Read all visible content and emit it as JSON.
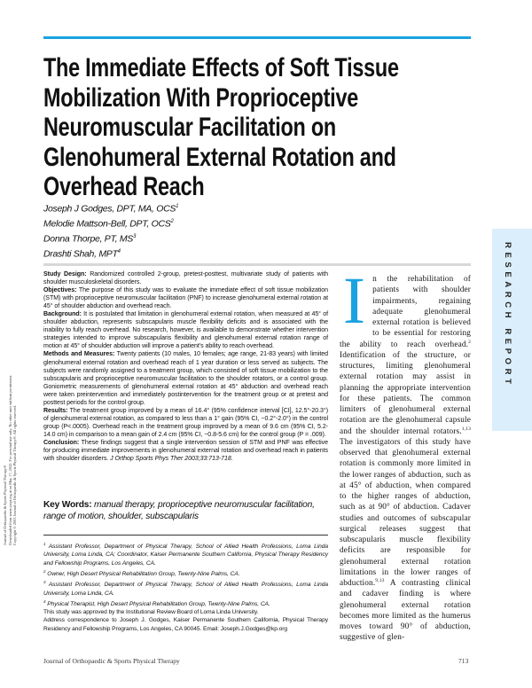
{
  "title_lines": [
    "The Immediate Effects of Soft Tissue",
    "Mobilization With Proprioceptive",
    "Neuromuscular Facilitation on",
    "Glenohumeral External Rotation and",
    "Overhead Reach"
  ],
  "authors": [
    {
      "name": "Joseph J Godges, DPT, MA, OCS",
      "sup": "1"
    },
    {
      "name": "Melodie Mattson-Bell, DPT, OCS",
      "sup": "2"
    },
    {
      "name": "Donna Thorpe, PT, MS",
      "sup": "3"
    },
    {
      "name": "Drashti Shah, MPT",
      "sup": "4"
    }
  ],
  "abstract": {
    "study_design": {
      "label": "Study Design:",
      "text": " Randomized controlled 2-group, pretest-posttest, multivariate study of patients with shoulder musculoskeletal disorders."
    },
    "objectives": {
      "label": "Objectives:",
      "text": " The purpose of this study was to evaluate the immediate effect of soft tissue mobilization (STM) with proprioceptive neuromuscular facilitation (PNF) to increase glenohumeral external rotation at 45° of shoulder abduction and overhead reach."
    },
    "background": {
      "label": "Background:",
      "text": " It is postulated that limitation in glenohumeral external rotation, when measured at 45° of shoulder abduction, represents subscapularis muscle flexibility deficits and is associated with the inability to fully reach overhead. No research, however, is available to demonstrate whether intervention strategies intended to improve subscapularis flexibility and glenohumeral external rotation range of motion at 45° of shoulder abduction will improve a patient's ability to reach overhead."
    },
    "methods": {
      "label": "Methods and Measures:",
      "text": " Twenty patients (10 males, 10 females; age range, 21-83 years) with limited glenohumeral external rotation and overhead reach of 1 year duration or less served as subjects. The subjects were randomly assigned to a treatment group, which consisted of soft tissue mobilization to the subscapularis and proprioceptive neuromuscular facilitation to the shoulder rotators, or a control group. Goniometric measurements of glenohumeral external rotation at 45° abduction and overhead reach were taken preintervention and immediately postintervention for the treatment group or at pretest and posttest periods for the control group."
    },
    "results": {
      "label": "Results:",
      "text": " The treatment group improved by a mean of 16.4° (95% confidence interval [CI], 12.5°-20.3°) of glenohumeral external rotation, as compared to less than a 1° gain (95% CI, −0.2°-2.0°) in the control group (P<.0005). Overhead reach in the treatment group improved by a mean of 9.6 cm (95% CI, 5.2-14.0 cm) in comparison to a mean gain of 2.4 cm (95% CI, −0.8-5.6 cm) for the control group (P = .009)."
    },
    "conclusion": {
      "label": "Conclusion:",
      "text": " These findings suggest that a single intervention session of STM and PNF was effective for producing immediate improvements in glenohumeral external rotation and overhead reach in patients with shoulder disorders. ",
      "citation": "J Orthop Sports Phys Ther 2003;33:713-718."
    }
  },
  "keywords": {
    "label": "Key Words:",
    "text": " manual therapy, proprioceptive neuromuscular facilitation, range of motion, shoulder, subscapularis"
  },
  "footnotes": [
    {
      "sup": "1",
      "text": " Assistant Professor, Department of Physical Therapy, School of Allied Health Professions, Loma Linda University, Loma Linda, CA; Coordinator, Kaiser Permanente Southern California, Physical Therapy Residency and Fellowship Programs, Los Angeles, CA."
    },
    {
      "sup": "2",
      "text": " Owner, High Desert Physical Rehabilitation Group, Twenty-Nine Palms, CA."
    },
    {
      "sup": "3",
      "text": " Assistant Professor, Department of Physical Therapy, School of Allied Health Professions, Loma Linda University, Loma Linda, CA."
    },
    {
      "sup": "4",
      "text": " Physical Therapist, High Desert Physical Rehabilitation Group, Twenty-Nine Palms, CA."
    }
  ],
  "approval_note": "This study was approved by the Institutional Review Board of Loma Linda University.",
  "correspondence": "Address correspondence to Joseph J. Godges, Kaiser Permanente Southern California, Physical Therapy Residency and Fellowship Programs, Los Angeles, CA 90045. Email: Joseph.J.Godges@kp.org",
  "body": {
    "dropcap": "I",
    "p1": "n the rehabilitation of patients with shoulder impairments, regaining adequate glenohumeral external rotation is believed to be essential for restoring the ability to reach overhead.",
    "ref1": "2",
    "p2": " Identification of the structure, or structures, limiting glenohumeral external rotation may assist in planning the appropriate intervention for these patients. The common limiters of glenohumeral external rotation are the glenohumeral capsule and the shoulder internal rotators.",
    "ref2": "1,13",
    "p3": " The investigators of this study have observed that glenohumeral external rotation is commonly more limited in the lower ranges of abduction, such as at 45° of abduction, when compared to the higher ranges of abduction, such as at 90° of abduction. Cadaver studies and outcomes of subscapular surgical releases suggest that subscapularis muscle flexibility deficits are responsible for glenohumeral external rotation limitations in the lower ranges of abduction.",
    "ref3": "9,13",
    "p4": " A contrasting clinical and cadaver finding is where glenohumeral external rotation becomes more limited as the humerus moves toward 90° of abduction, suggestive of glen-"
  },
  "section_label": "RESEARCH REPORT",
  "footer": {
    "journal": "Journal of Orthopaedic & Sports Physical Therapy",
    "page": "713"
  },
  "side_notice": [
    "Journal of Orthopaedic & Sports Physical Therapy®",
    "Downloaded from www.jospt.org at on May 17, 2022. For personal use only. No other uses without permission.",
    "Copyright © 2003 Journal of Orthopaedic & Sports Physical Therapy®. All rights reserved."
  ],
  "colors": {
    "accent": "#1aa3e0",
    "sidebox": "#dbeefb"
  }
}
